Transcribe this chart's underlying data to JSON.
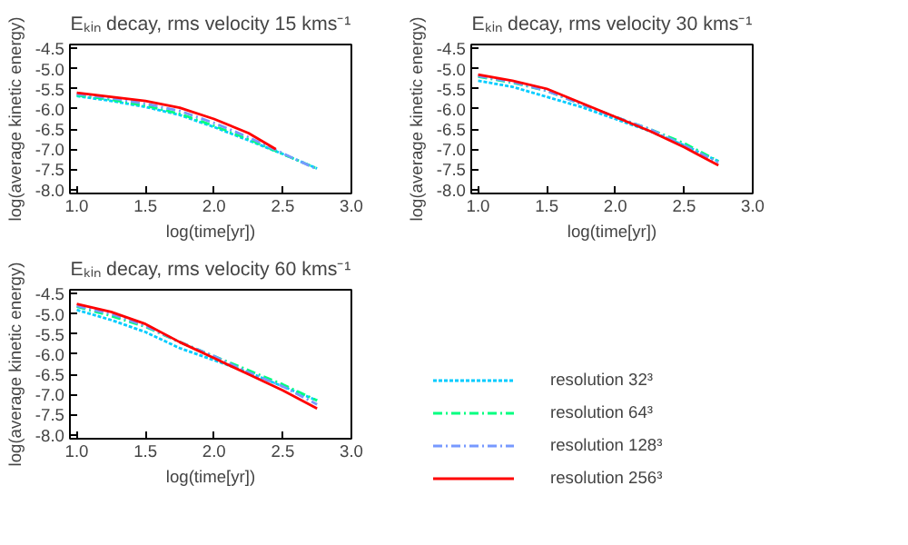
{
  "chart_data": [
    {
      "type": "line",
      "title": "Eₖᵢₙ decay, rms velocity 15 kms⁻¹",
      "xlabel": "log(time[yr])",
      "ylabel": "log(average kinetic energy)",
      "x": [
        1.0,
        1.25,
        1.5,
        1.75,
        2.0,
        2.25,
        2.5,
        2.75
      ],
      "xlim": [
        0.95,
        3.0
      ],
      "ylim": [
        -8.1,
        -4.4
      ],
      "xticks": [
        {
          "value": 1,
          "label": "1.0"
        },
        {
          "value": 1.5,
          "label": "1.5"
        },
        {
          "value": 2,
          "label": "2.0"
        },
        {
          "value": 2.5,
          "label": "2.5"
        },
        {
          "value": 3,
          "label": "3.0"
        }
      ],
      "yticks": [
        {
          "value": -8,
          "label": "-8.0"
        },
        -7.5,
        {
          "value": -7,
          "label": "-7.0"
        },
        -6.5,
        {
          "value": -6,
          "label": "-6.0"
        },
        -5.5,
        {
          "value": -5,
          "label": "-5.0"
        },
        -4.5
      ],
      "grid": false,
      "legend": false,
      "series": [
        {
          "color": "#00ccff",
          "line_style": "dotted",
          "values": [
            -5.68,
            -5.8,
            -5.95,
            -6.15,
            -6.45,
            -6.78,
            -7.12,
            -7.48
          ]
        },
        {
          "color": "#00ff80",
          "line_style": "dashdot",
          "values": [
            -5.66,
            -5.77,
            -5.92,
            -6.12,
            -6.42,
            -6.75,
            -7.12,
            -7.48
          ]
        },
        {
          "color": "#7799ff",
          "line_style": "dashdot",
          "values": [
            -5.63,
            -5.73,
            -5.87,
            -6.05,
            -6.35,
            -6.7,
            -7.1,
            -7.5
          ]
        },
        {
          "color": "#ff0000",
          "line_style": "solid",
          "x": [
            1.0,
            1.25,
            1.5,
            1.75,
            2.0,
            2.25,
            2.45
          ],
          "values": [
            -5.6,
            -5.7,
            -5.8,
            -5.97,
            -6.25,
            -6.6,
            -7.0
          ]
        }
      ]
    },
    {
      "type": "line",
      "title": "Eₖᵢₙ decay, rms velocity 30 kms⁻¹",
      "xlabel": "log(time[yr])",
      "ylabel": "log(average kinetic energy)",
      "x": [
        1.0,
        1.25,
        1.5,
        1.75,
        2.0,
        2.25,
        2.5,
        2.75
      ],
      "xlim": [
        0.95,
        3.0
      ],
      "ylim": [
        -8.1,
        -4.4
      ],
      "xticks": [
        {
          "value": 1,
          "label": "1.0"
        },
        {
          "value": 1.5,
          "label": "1.5"
        },
        {
          "value": 2,
          "label": "2.0"
        },
        {
          "value": 2.5,
          "label": "2.5"
        },
        {
          "value": 3,
          "label": "3.0"
        }
      ],
      "yticks": [
        {
          "value": -8,
          "label": "-8.0"
        },
        -7.5,
        {
          "value": -7,
          "label": "-7.0"
        },
        -6.5,
        {
          "value": -6,
          "label": "-6.0"
        },
        -5.5,
        {
          "value": -5,
          "label": "-5.0"
        },
        -4.5
      ],
      "grid": false,
      "legend": false,
      "series": [
        {
          "color": "#00ccff",
          "line_style": "dotted",
          "values": [
            -5.3,
            -5.45,
            -5.7,
            -5.95,
            -6.25,
            -6.55,
            -6.9,
            -7.3
          ]
        },
        {
          "color": "#00ff80",
          "line_style": "dashdot",
          "values": [
            -5.2,
            -5.35,
            -5.55,
            -5.88,
            -6.2,
            -6.5,
            -6.85,
            -7.3
          ]
        },
        {
          "color": "#7799ff",
          "line_style": "dashdot",
          "values": [
            -5.18,
            -5.33,
            -5.55,
            -5.88,
            -6.2,
            -6.5,
            -6.9,
            -7.33
          ]
        },
        {
          "color": "#ff0000",
          "line_style": "solid",
          "values": [
            -5.15,
            -5.3,
            -5.5,
            -5.85,
            -6.2,
            -6.55,
            -6.95,
            -7.4
          ]
        }
      ]
    },
    {
      "type": "line",
      "title": "Eₖᵢₙ decay, rms velocity 60 kms⁻¹",
      "xlabel": "log(time[yr])",
      "ylabel": "log(average kinetic energy)",
      "x": [
        1.0,
        1.25,
        1.5,
        1.75,
        2.0,
        2.25,
        2.5,
        2.75
      ],
      "xlim": [
        0.95,
        3.0
      ],
      "ylim": [
        -8.1,
        -4.4
      ],
      "xticks": [
        {
          "value": 1,
          "label": "1.0"
        },
        {
          "value": 1.5,
          "label": "1.5"
        },
        {
          "value": 2,
          "label": "2.0"
        },
        {
          "value": 2.5,
          "label": "2.5"
        },
        {
          "value": 3,
          "label": "3.0"
        }
      ],
      "yticks": [
        {
          "value": -8,
          "label": "-8.0"
        },
        -7.5,
        {
          "value": -7,
          "label": "-7.0"
        },
        -6.5,
        {
          "value": -6,
          "label": "-6.0"
        },
        -5.5,
        {
          "value": -5,
          "label": "-5.0"
        },
        -4.5
      ],
      "grid": false,
      "legend": "right",
      "series": [
        {
          "name": "resolution 32³",
          "color": "#00ccff",
          "line_style": "dotted",
          "values": [
            -4.9,
            -5.15,
            -5.45,
            -5.85,
            -6.15,
            -6.45,
            -6.8,
            -7.15
          ]
        },
        {
          "name": "resolution 64³",
          "color": "#00ff80",
          "line_style": "dashdot",
          "values": [
            -4.82,
            -5.05,
            -5.32,
            -5.7,
            -6.05,
            -6.4,
            -6.75,
            -7.15
          ]
        },
        {
          "name": "resolution 128³",
          "color": "#7799ff",
          "line_style": "dashdot",
          "values": [
            -4.8,
            -5.0,
            -5.3,
            -5.7,
            -6.05,
            -6.45,
            -6.8,
            -7.25
          ]
        },
        {
          "name": "resolution 256³",
          "color": "#ff0000",
          "line_style": "solid",
          "values": [
            -4.75,
            -4.95,
            -5.25,
            -5.7,
            -6.1,
            -6.5,
            -6.9,
            -7.35
          ]
        }
      ]
    }
  ]
}
